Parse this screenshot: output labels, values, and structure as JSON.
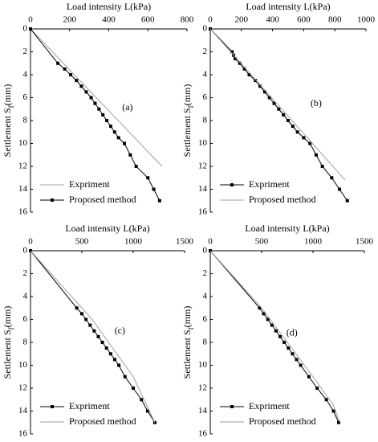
{
  "chart_data": [
    {
      "type": "line",
      "label": "(a)",
      "xlabel": "Load intensity L(kPa)",
      "ylabel": [
        "Settlement S",
        "f",
        "(mm)"
      ],
      "xlim": [
        0,
        800
      ],
      "xticks": [
        0,
        200,
        400,
        600,
        800
      ],
      "ylim": [
        0,
        16
      ],
      "yticks": [
        0,
        2,
        4,
        6,
        8,
        10,
        12,
        14,
        16
      ],
      "y_inverted": true,
      "x_axis_top": true,
      "legend": "lower left",
      "series": [
        {
          "name": "Expriment",
          "color": "#a0a0a0",
          "marker": "none",
          "x": [
            0,
            672
          ],
          "values": [
            0,
            12
          ]
        },
        {
          "name": "Proposed method",
          "color": "#000000",
          "marker": "square",
          "x": [
            0,
            140,
            175,
            205,
            235,
            260,
            285,
            310,
            330,
            350,
            370,
            390,
            410,
            430,
            450,
            480,
            510,
            540,
            600,
            630,
            660
          ],
          "values": [
            0,
            3,
            3.5,
            4,
            4.5,
            5,
            5.5,
            6,
            6.5,
            7,
            7.5,
            8,
            8.5,
            9,
            9.5,
            10,
            11,
            12,
            13,
            14,
            15
          ]
        }
      ]
    },
    {
      "type": "line",
      "label": "(b)",
      "xlabel": "Load intensity L(kPa)",
      "ylabel": [
        "Settlement S",
        "f",
        "(mm)"
      ],
      "xlim": [
        0,
        1000
      ],
      "xticks": [
        0,
        200,
        400,
        600,
        800,
        1000
      ],
      "ylim": [
        0,
        16
      ],
      "yticks": [
        0,
        2,
        4,
        6,
        8,
        10,
        12,
        14,
        16
      ],
      "y_inverted": true,
      "x_axis_top": true,
      "legend": "lower left",
      "series": [
        {
          "name": "Expriment",
          "color": "#000000",
          "marker": "square",
          "x": [
            0,
            140,
            150,
            160,
            190,
            220,
            250,
            290,
            320,
            350,
            380,
            410,
            440,
            470,
            500,
            530,
            560,
            600,
            640,
            680,
            720,
            780,
            830,
            880
          ],
          "values": [
            0,
            2,
            2.3,
            2.6,
            3,
            3.5,
            4,
            4.5,
            5,
            5.5,
            6,
            6.5,
            7,
            7.5,
            8,
            8.5,
            9,
            9.5,
            10,
            11,
            12,
            13,
            14,
            15
          ]
        },
        {
          "name": "Proposed method",
          "color": "#a0a0a0",
          "marker": "none",
          "x": [
            0,
            866
          ],
          "values": [
            0,
            13.2
          ]
        }
      ]
    },
    {
      "type": "line",
      "label": "(c)",
      "xlabel": "Load intensity L(kPa)",
      "ylabel": [
        "Settlement S",
        "f",
        "(mm)"
      ],
      "xlim": [
        0,
        1500
      ],
      "xticks": [
        0,
        500,
        1000,
        1500
      ],
      "ylim": [
        0,
        16
      ],
      "yticks": [
        0,
        2,
        4,
        6,
        8,
        10,
        12,
        14,
        16
      ],
      "y_inverted": true,
      "x_axis_top": true,
      "legend": "lower left",
      "series": [
        {
          "name": "Expriment",
          "color": "#000000",
          "marker": "square",
          "x": [
            0,
            450,
            500,
            540,
            580,
            620,
            660,
            700,
            740,
            780,
            820,
            860,
            920,
            1000,
            1080,
            1140,
            1210
          ],
          "values": [
            0,
            5,
            5.5,
            6,
            6.5,
            7,
            7.5,
            8,
            8.5,
            9,
            9.5,
            10,
            11,
            12,
            13,
            14,
            15
          ]
        },
        {
          "name": "Proposed method",
          "color": "#a0a0a0",
          "marker": "none",
          "x": [
            0,
            600,
            1000,
            1210
          ],
          "values": [
            0,
            6,
            11,
            15
          ]
        }
      ]
    },
    {
      "type": "line",
      "label": "(d)",
      "xlabel": "Load intensity L(kPa)",
      "ylabel": [
        "Settlement S",
        "f",
        "(mm)"
      ],
      "xlim": [
        0,
        1500
      ],
      "xticks": [
        0,
        500,
        1000,
        1500
      ],
      "ylim": [
        0,
        16
      ],
      "yticks": [
        0,
        2,
        4,
        6,
        8,
        10,
        12,
        14,
        16
      ],
      "y_inverted": true,
      "x_axis_top": true,
      "legend": "lower left",
      "series": [
        {
          "name": "Expriment",
          "color": "#000000",
          "marker": "square",
          "x": [
            0,
            480,
            520,
            560,
            600,
            640,
            680,
            720,
            760,
            800,
            840,
            880,
            960,
            1040,
            1130,
            1200,
            1250
          ],
          "values": [
            0,
            5,
            5.5,
            6,
            6.5,
            7,
            7.5,
            8,
            8.5,
            9,
            9.5,
            10,
            11,
            12,
            13,
            14,
            15
          ]
        },
        {
          "name": "Proposed method",
          "color": "#a0a0a0",
          "marker": "none",
          "x": [
            0,
            500,
            1000,
            1200,
            1260
          ],
          "values": [
            0,
            5,
            11,
            13.5,
            15
          ]
        }
      ]
    }
  ]
}
